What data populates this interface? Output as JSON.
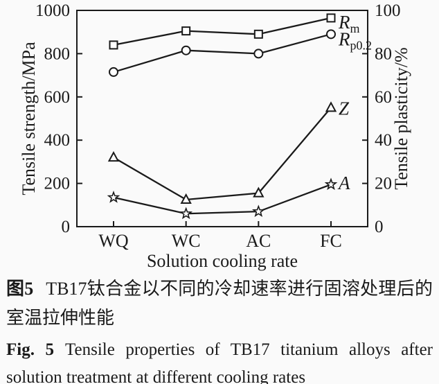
{
  "colors": {
    "ink": "#1a1a1a",
    "background": "#fafafa",
    "marker_fill": "#ffffff"
  },
  "figure": {
    "captions": {
      "zh": {
        "label": "图5",
        "text": "TB17钛合金以不同的冷却速率进行固溶处理后的室温拉伸性能"
      },
      "en": {
        "label": "Fig. 5",
        "text": "Tensile properties of TB17 titanium alloys after solution treatment at different cooling rates"
      }
    }
  },
  "chart_data": {
    "type": "line",
    "title": "",
    "categories": [
      "WQ",
      "WC",
      "AC",
      "FC"
    ],
    "xlabel": "Solution cooling rate",
    "grid": false,
    "legend_position": "end-of-line",
    "axes": {
      "left": {
        "label": "Tensile strength/MPa",
        "range": [
          0,
          1000
        ],
        "ticks": [
          0,
          200,
          400,
          600,
          800,
          1000
        ]
      },
      "right": {
        "label": "Tensile plasticity/%",
        "range": [
          0,
          100
        ],
        "ticks": [
          0,
          20,
          40,
          60,
          80,
          100
        ]
      }
    },
    "series": [
      {
        "name": "Rm",
        "label_main": "R",
        "label_sub": "m",
        "marker": "square",
        "axis": "left",
        "values": [
          840,
          905,
          890,
          965
        ]
      },
      {
        "name": "Rp0.2",
        "label_main": "R",
        "label_sub": "p0.2",
        "marker": "circle",
        "axis": "left",
        "values": [
          715,
          815,
          800,
          890
        ]
      },
      {
        "name": "Z",
        "label_main": "Z",
        "label_sub": "",
        "marker": "triangle",
        "axis": "right",
        "values": [
          32,
          12.5,
          15.5,
          55
        ]
      },
      {
        "name": "A",
        "label_main": "A",
        "label_sub": "",
        "marker": "star",
        "axis": "right",
        "values": [
          13.5,
          6,
          7,
          19.5
        ]
      }
    ]
  }
}
